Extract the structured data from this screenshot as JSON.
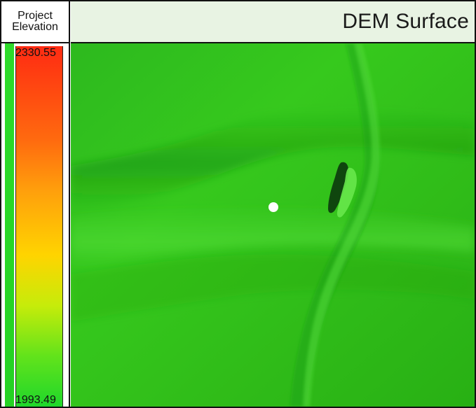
{
  "legend": {
    "title_line1": "Project",
    "title_line2": "Elevation",
    "max_value": "2330.55",
    "min_value": "1993.49",
    "ramp_colors": [
      "#ff2b12",
      "#ff6a0f",
      "#ff9f0c",
      "#ffd400",
      "#c6ec0a",
      "#62e31b",
      "#1fd72b"
    ]
  },
  "map": {
    "title": "DEM Surface",
    "surface_color": "#35c31c",
    "location_marker_color": "#ffffff"
  }
}
